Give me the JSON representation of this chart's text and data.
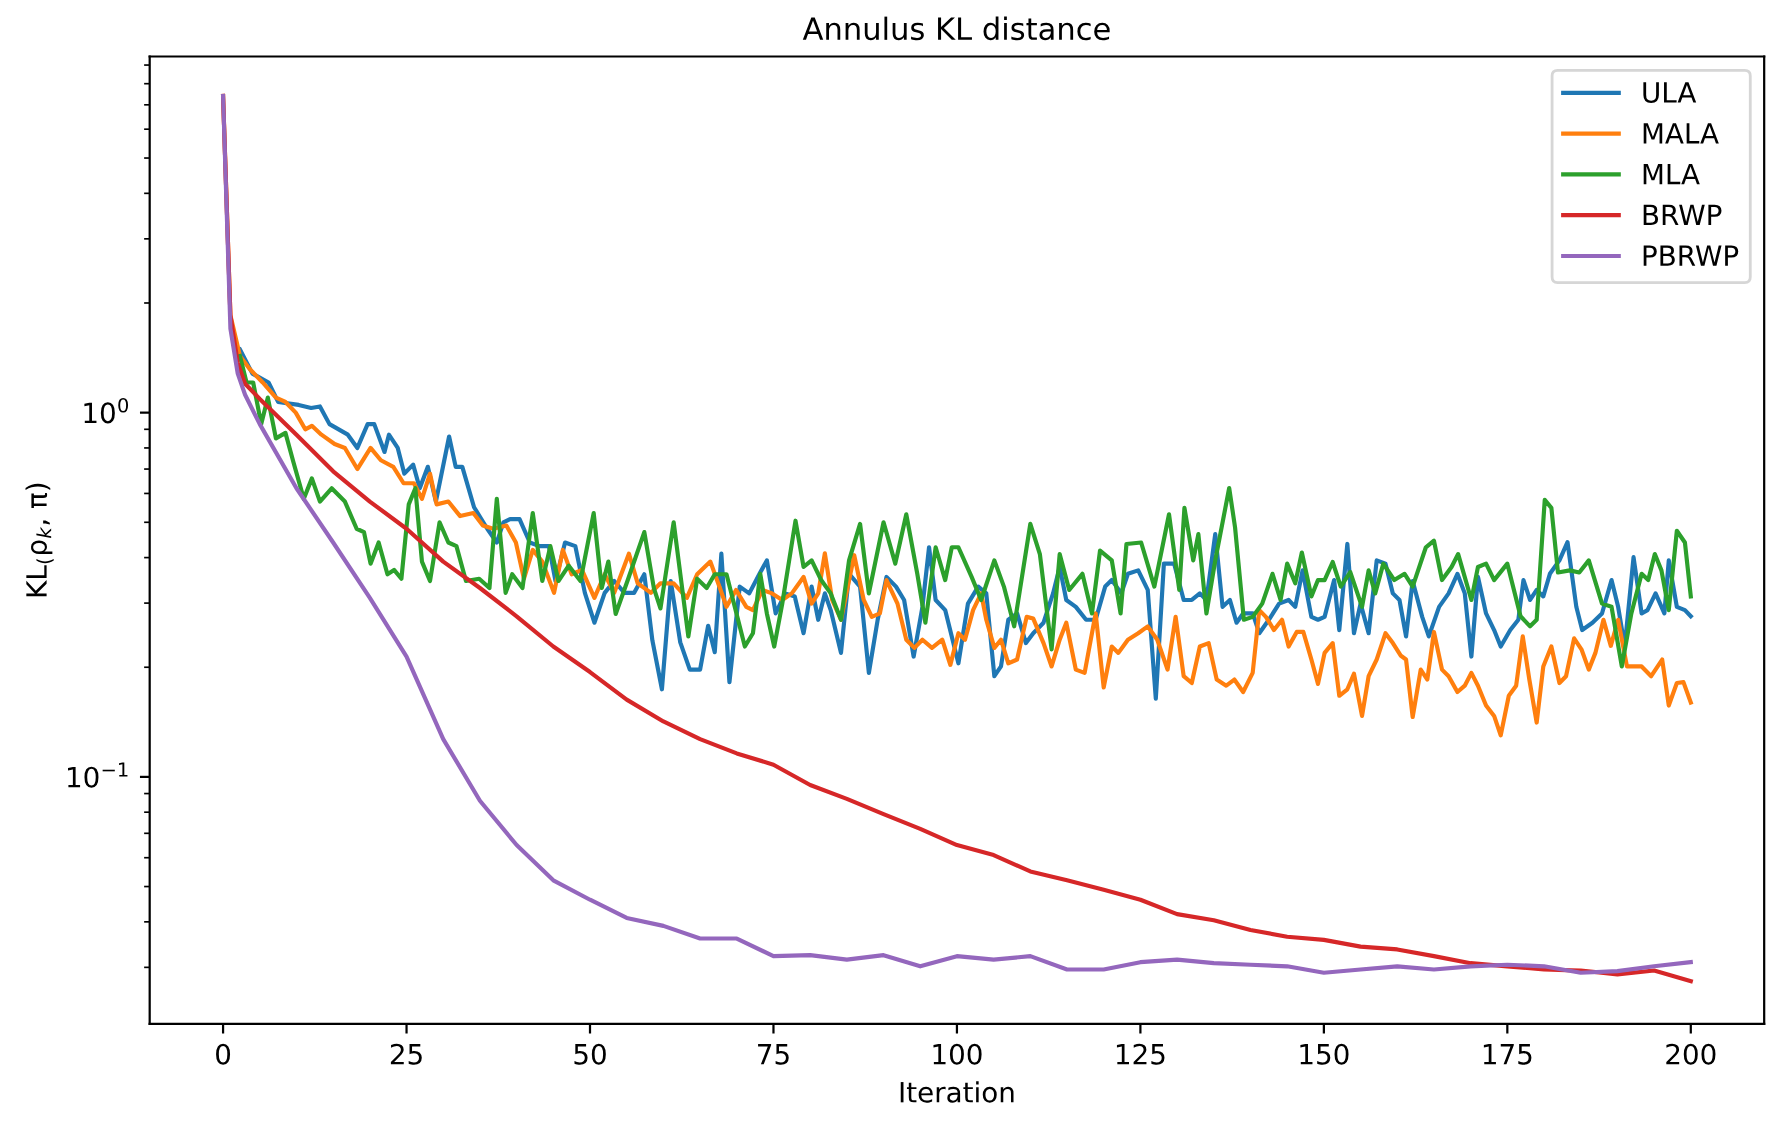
{
  "chart_data": {
    "type": "line",
    "title": "Annulus KL distance",
    "xlabel": "Iteration",
    "ylabel": "KL$_{(}$ρ$_{k}$, π)",
    "log": "y",
    "grid": false,
    "legend": "top right",
    "line_style": "solid",
    "marker": "none",
    "xlim": [
      -10,
      210
    ],
    "xticks": [
      0,
      25,
      50,
      75,
      100,
      125,
      150,
      175,
      200
    ],
    "ylim": [
      0.021,
      9.5
    ],
    "yticks": [
      {
        "value": 1,
        "label": "10$^{0}$"
      },
      {
        "value": 0.1,
        "label": "10$^{−1}$"
      }
    ],
    "series": [
      {
        "name": "ULA",
        "color": "#1f77b4",
        "x": [
          2.3,
          4,
          6.2,
          7.5,
          10.3,
          12,
          13.2,
          14.5,
          17,
          18.3,
          19.7,
          20.6,
          22,
          22.6,
          23.8,
          24.7,
          25.9,
          26.8,
          27.9,
          29,
          30.8,
          31.7,
          32.6,
          34.2,
          36,
          37.3,
          38.2,
          39.1,
          40.4,
          41.8,
          43.1,
          44.4,
          45.3,
          46.6,
          48,
          49.3,
          50.6,
          52,
          53.3,
          54.7,
          56,
          57.4,
          58.5,
          59.8,
          61,
          62.3,
          63.6,
          65,
          66.1,
          67,
          67.9,
          69,
          70.4,
          71.7,
          73.1,
          74.1,
          75.3,
          76.6,
          77.9,
          79.1,
          80.2,
          81.1,
          82,
          82.8,
          84.2,
          85.3,
          86.8,
          88,
          89.2,
          90.4,
          91.7,
          92.8,
          94.1,
          95.3,
          96.2,
          97.1,
          98.4,
          100.2,
          101.5,
          102.9,
          104,
          105.1,
          106,
          107,
          108.2,
          109.4,
          110.4,
          111.8,
          113.1,
          114,
          114.9,
          116.2,
          117.6,
          118.9,
          120.2,
          121.1,
          122.4,
          123.3,
          124.7,
          126,
          127.1,
          128.2,
          129.6,
          130.9,
          132,
          133.1,
          134,
          135.2,
          136.2,
          137.2,
          138.1,
          139,
          140.3,
          141.2,
          142.5,
          143.9,
          145.2,
          146.1,
          147.1,
          148.3,
          149.2,
          150.1,
          151.4,
          152.1,
          153.2,
          154.1,
          155,
          156.1,
          157.2,
          158.4,
          159.4,
          160.3,
          161.2,
          162.1,
          163.4,
          164.3,
          165.7,
          167,
          168.2,
          169.2,
          170.1,
          171,
          172.1,
          173.2,
          174.1,
          175.4,
          176.5,
          177.2,
          178.1,
          179,
          179.9,
          180.8,
          182.1,
          183.2,
          184.4,
          185.2,
          186.6,
          187.9,
          189.2,
          190.1,
          191,
          192.2,
          193.3,
          194.1,
          195.2,
          196.4,
          197,
          198.1,
          199.2,
          200
        ],
        "values": [
          1.49,
          1.28,
          1.21,
          1.07,
          1.05,
          1.03,
          1.04,
          0.93,
          0.87,
          0.8,
          0.93,
          0.93,
          0.78,
          0.87,
          0.8,
          0.68,
          0.72,
          0.62,
          0.71,
          0.57,
          0.86,
          0.71,
          0.71,
          0.55,
          0.48,
          0.44,
          0.5,
          0.51,
          0.51,
          0.44,
          0.43,
          0.43,
          0.345,
          0.44,
          0.43,
          0.32,
          0.265,
          0.32,
          0.345,
          0.32,
          0.32,
          0.36,
          0.237,
          0.174,
          0.345,
          0.234,
          0.197,
          0.197,
          0.26,
          0.22,
          0.41,
          0.182,
          0.333,
          0.319,
          0.361,
          0.393,
          0.281,
          0.319,
          0.313,
          0.248,
          0.333,
          0.27,
          0.319,
          0.287,
          0.219,
          0.361,
          0.333,
          0.193,
          0.27,
          0.354,
          0.333,
          0.306,
          0.214,
          0.293,
          0.427,
          0.306,
          0.287,
          0.205,
          0.299,
          0.333,
          0.319,
          0.189,
          0.201,
          0.27,
          0.281,
          0.233,
          0.248,
          0.265,
          0.319,
          0.377,
          0.306,
          0.293,
          0.27,
          0.27,
          0.333,
          0.347,
          0.319,
          0.361,
          0.369,
          0.326,
          0.164,
          0.385,
          0.385,
          0.306,
          0.306,
          0.319,
          0.306,
          0.464,
          0.293,
          0.306,
          0.265,
          0.281,
          0.281,
          0.248,
          0.27,
          0.299,
          0.306,
          0.293,
          0.369,
          0.275,
          0.27,
          0.275,
          0.347,
          0.253,
          0.436,
          0.248,
          0.299,
          0.248,
          0.393,
          0.385,
          0.319,
          0.306,
          0.243,
          0.345,
          0.275,
          0.243,
          0.293,
          0.319,
          0.361,
          0.319,
          0.214,
          0.354,
          0.281,
          0.253,
          0.228,
          0.253,
          0.27,
          0.347,
          0.306,
          0.326,
          0.313,
          0.361,
          0.393,
          0.441,
          0.293,
          0.253,
          0.265,
          0.281,
          0.347,
          0.293,
          0.228,
          0.401,
          0.281,
          0.287,
          0.319,
          0.281,
          0.393,
          0.293,
          0.287,
          0.276
        ]
      },
      {
        "name": "MALA",
        "color": "#ff7f0e",
        "x": [
          0,
          1,
          2.3,
          3.6,
          5.4,
          7.2,
          8.5,
          9.9,
          11.2,
          12.1,
          13.4,
          15.2,
          16.6,
          18.3,
          20.1,
          21.5,
          23.2,
          24.6,
          26,
          27.1,
          28.2,
          29.1,
          30.7,
          32.3,
          34.1,
          35.4,
          36.8,
          38.6,
          39.9,
          41,
          42.2,
          43.5,
          45.1,
          46.3,
          47.5,
          48.9,
          50.6,
          52,
          53.3,
          55.3,
          56.5,
          58.3,
          59.6,
          61.4,
          63.2,
          64.6,
          66.4,
          67.7,
          68.6,
          69.9,
          71.3,
          72.2,
          73.5,
          74.8,
          76.2,
          77.5,
          79.1,
          80.2,
          81.1,
          82,
          83,
          84.2,
          86,
          87.3,
          88.4,
          89.5,
          90.4,
          91.9,
          93.1,
          94.2,
          95.3,
          96.6,
          98,
          99.1,
          100.2,
          101.1,
          102.2,
          103.3,
          104,
          105.1,
          106,
          107,
          108.2,
          109.5,
          110.4,
          111.8,
          112.9,
          114,
          114.9,
          116.2,
          117.4,
          118.9,
          120,
          121.1,
          122,
          123.3,
          124.7,
          126,
          127.3,
          128.7,
          129.8,
          130.9,
          132,
          133.1,
          134.3,
          135.4,
          136.7,
          137.8,
          139,
          140.3,
          141.2,
          142.1,
          143.2,
          144.3,
          145.2,
          146.3,
          147.2,
          148.3,
          149.2,
          150.1,
          151.2,
          152.1,
          153.2,
          154.1,
          155.2,
          156.1,
          157.2,
          158.4,
          159.4,
          160.5,
          161.2,
          162.1,
          163.2,
          164.1,
          165,
          166.1,
          167,
          168.2,
          169.2,
          170.1,
          171,
          172.1,
          173.2,
          174.1,
          175.2,
          176.2,
          177.1,
          178,
          179,
          179.9,
          181,
          182.1,
          183,
          184.1,
          185.1,
          186.1,
          187,
          188.1,
          189.1,
          190.1,
          191.3,
          192.4,
          193.3,
          194.6,
          196.1,
          197,
          198.1,
          199,
          200
        ],
        "values": [
          7.4,
          1.85,
          1.43,
          1.32,
          1.21,
          1.1,
          1.07,
          1.0,
          0.9,
          0.92,
          0.87,
          0.82,
          0.8,
          0.7,
          0.8,
          0.74,
          0.71,
          0.64,
          0.64,
          0.58,
          0.68,
          0.56,
          0.57,
          0.52,
          0.53,
          0.49,
          0.48,
          0.49,
          0.44,
          0.35,
          0.42,
          0.39,
          0.32,
          0.42,
          0.36,
          0.37,
          0.31,
          0.36,
          0.32,
          0.41,
          0.34,
          0.32,
          0.34,
          0.34,
          0.31,
          0.36,
          0.39,
          0.33,
          0.293,
          0.326,
          0.293,
          0.287,
          0.326,
          0.319,
          0.306,
          0.319,
          0.354,
          0.299,
          0.319,
          0.411,
          0.306,
          0.27,
          0.406,
          0.306,
          0.275,
          0.281,
          0.347,
          0.299,
          0.238,
          0.226,
          0.238,
          0.226,
          0.238,
          0.203,
          0.248,
          0.238,
          0.287,
          0.319,
          0.27,
          0.226,
          0.238,
          0.205,
          0.21,
          0.275,
          0.272,
          0.233,
          0.201,
          0.238,
          0.265,
          0.197,
          0.193,
          0.281,
          0.176,
          0.228,
          0.219,
          0.238,
          0.248,
          0.259,
          0.238,
          0.197,
          0.275,
          0.189,
          0.181,
          0.228,
          0.233,
          0.185,
          0.178,
          0.185,
          0.171,
          0.193,
          0.287,
          0.275,
          0.253,
          0.27,
          0.228,
          0.25,
          0.25,
          0.21,
          0.18,
          0.219,
          0.233,
          0.167,
          0.174,
          0.192,
          0.147,
          0.189,
          0.21,
          0.248,
          0.233,
          0.215,
          0.21,
          0.146,
          0.197,
          0.185,
          0.25,
          0.197,
          0.189,
          0.171,
          0.178,
          0.193,
          0.178,
          0.157,
          0.147,
          0.13,
          0.167,
          0.178,
          0.243,
          0.185,
          0.141,
          0.201,
          0.228,
          0.181,
          0.189,
          0.24,
          0.224,
          0.197,
          0.219,
          0.27,
          0.229,
          0.27,
          0.201,
          0.201,
          0.201,
          0.189,
          0.21,
          0.157,
          0.181,
          0.182,
          0.16
        ]
      },
      {
        "name": "MLA",
        "color": "#2ca02c",
        "x": [
          2.3,
          3.2,
          4.1,
          5.2,
          6.1,
          7.2,
          8.5,
          9.6,
          11,
          12.1,
          13.2,
          14.8,
          16.6,
          18.2,
          19.2,
          20.1,
          21.2,
          22.4,
          23.3,
          24.3,
          25.3,
          26.2,
          27.1,
          28.2,
          29.5,
          30.7,
          31.8,
          33.1,
          34.9,
          36.3,
          37.3,
          38.5,
          39.4,
          40.8,
          42.2,
          43.5,
          44.6,
          45.7,
          47.1,
          48.7,
          50.5,
          51.6,
          52.5,
          53.5,
          55.1,
          57.4,
          58.7,
          59.6,
          61.4,
          63.4,
          64.6,
          65.9,
          67,
          68.6,
          71.1,
          72.2,
          73.2,
          74.1,
          75.1,
          76.2,
          78,
          79.1,
          80.2,
          81.5,
          82.8,
          84.2,
          85.3,
          86.8,
          88,
          90,
          91.6,
          93.1,
          94.6,
          95.7,
          97.1,
          98.4,
          99.3,
          100.2,
          102,
          103.3,
          105.1,
          106.4,
          107.8,
          110,
          111.3,
          112.9,
          114,
          115.3,
          117.1,
          118.4,
          119.5,
          121.1,
          122.3,
          123.1,
          125.1,
          126.9,
          128.9,
          130.3,
          131,
          132.2,
          132.9,
          134,
          135.2,
          137.1,
          137.9,
          139.1,
          140.3,
          141.6,
          143,
          144.1,
          145,
          146.1,
          147,
          148.3,
          149.2,
          150.1,
          151.2,
          152.3,
          153.6,
          155.2,
          156.1,
          157,
          158.1,
          159.6,
          161,
          162.1,
          163.9,
          165,
          166.1,
          167.4,
          168.3,
          170.1,
          171,
          172.1,
          173.2,
          175,
          176.8,
          178.1,
          179,
          180.1,
          181,
          181.9,
          183.5,
          184.8,
          186.1,
          187.9,
          189.2,
          190.6,
          191.9,
          193.3,
          194.2,
          195.1,
          196,
          197,
          198.1,
          199.2,
          200
        ],
        "values": [
          1.43,
          1.21,
          1.21,
          0.93,
          1.1,
          0.85,
          0.88,
          0.73,
          0.58,
          0.66,
          0.57,
          0.62,
          0.57,
          0.48,
          0.47,
          0.385,
          0.44,
          0.36,
          0.37,
          0.35,
          0.56,
          0.62,
          0.39,
          0.345,
          0.5,
          0.44,
          0.43,
          0.345,
          0.35,
          0.33,
          0.58,
          0.32,
          0.36,
          0.33,
          0.53,
          0.345,
          0.43,
          0.345,
          0.38,
          0.345,
          0.53,
          0.33,
          0.39,
          0.28,
          0.345,
          0.47,
          0.33,
          0.29,
          0.5,
          0.243,
          0.35,
          0.33,
          0.36,
          0.36,
          0.228,
          0.248,
          0.361,
          0.281,
          0.228,
          0.299,
          0.505,
          0.377,
          0.393,
          0.347,
          0.319,
          0.27,
          0.393,
          0.495,
          0.319,
          0.5,
          0.385,
          0.526,
          0.361,
          0.265,
          0.427,
          0.347,
          0.427,
          0.427,
          0.354,
          0.306,
          0.393,
          0.333,
          0.259,
          0.495,
          0.409,
          0.224,
          0.409,
          0.326,
          0.361,
          0.281,
          0.418,
          0.393,
          0.281,
          0.436,
          0.44,
          0.333,
          0.526,
          0.326,
          0.548,
          0.393,
          0.464,
          0.281,
          0.393,
          0.621,
          0.484,
          0.27,
          0.275,
          0.299,
          0.361,
          0.306,
          0.385,
          0.34,
          0.413,
          0.313,
          0.347,
          0.347,
          0.389,
          0.333,
          0.365,
          0.293,
          0.369,
          0.319,
          0.385,
          0.347,
          0.361,
          0.333,
          0.427,
          0.445,
          0.347,
          0.377,
          0.409,
          0.306,
          0.377,
          0.385,
          0.347,
          0.385,
          0.276,
          0.259,
          0.27,
          0.576,
          0.548,
          0.364,
          0.369,
          0.364,
          0.393,
          0.299,
          0.293,
          0.201,
          0.281,
          0.361,
          0.347,
          0.409,
          0.369,
          0.287,
          0.474,
          0.44,
          0.313
        ]
      },
      {
        "name": "BRWP",
        "color": "#d62728",
        "x": [
          0,
          1,
          2,
          3,
          5,
          10,
          15,
          20,
          25,
          30,
          35,
          40,
          45,
          50,
          55,
          60,
          65,
          70,
          75,
          80,
          85,
          90,
          95,
          100,
          105,
          110,
          115,
          120,
          125,
          130,
          135,
          140,
          145,
          150,
          155,
          160,
          165,
          170,
          175,
          180,
          185,
          190,
          195,
          200
        ],
        "values": [
          7.4,
          1.85,
          1.37,
          1.2,
          1.09,
          0.87,
          0.69,
          0.57,
          0.48,
          0.39,
          0.33,
          0.276,
          0.228,
          0.194,
          0.163,
          0.142,
          0.127,
          0.116,
          0.108,
          0.095,
          0.087,
          0.079,
          0.072,
          0.065,
          0.061,
          0.055,
          0.052,
          0.049,
          0.046,
          0.042,
          0.0404,
          0.038,
          0.0364,
          0.0357,
          0.0342,
          0.0336,
          0.0322,
          0.0308,
          0.0302,
          0.0296,
          0.0294,
          0.0287,
          0.0294,
          0.0275
        ]
      },
      {
        "name": "PBRWP",
        "color": "#9467bd",
        "x": [
          0,
          1,
          2,
          3,
          5,
          10,
          15,
          20,
          25,
          30,
          35,
          40,
          45,
          50,
          55,
          60,
          65,
          70,
          75,
          80,
          85,
          90,
          95,
          100,
          105,
          110,
          115,
          120,
          125,
          130,
          135,
          140,
          145,
          150,
          155,
          160,
          165,
          170,
          175,
          180,
          185,
          190,
          195,
          200
        ],
        "values": [
          7.4,
          1.7,
          1.28,
          1.12,
          0.93,
          0.62,
          0.44,
          0.31,
          0.214,
          0.127,
          0.086,
          0.065,
          0.052,
          0.046,
          0.041,
          0.039,
          0.036,
          0.036,
          0.0322,
          0.0324,
          0.0315,
          0.0324,
          0.0302,
          0.0322,
          0.0315,
          0.0322,
          0.0296,
          0.0296,
          0.031,
          0.0315,
          0.0308,
          0.0305,
          0.0302,
          0.029,
          0.0296,
          0.0302,
          0.0296,
          0.0302,
          0.0305,
          0.0302,
          0.029,
          0.0293,
          0.0302,
          0.031
        ]
      }
    ]
  }
}
